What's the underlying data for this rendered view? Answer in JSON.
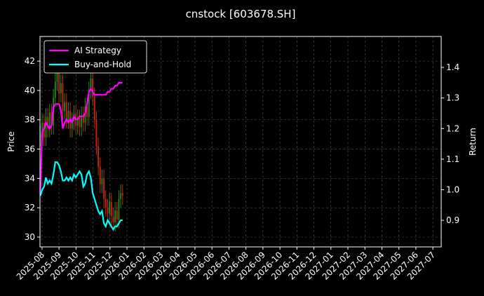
{
  "chart_data": {
    "type": "candlestick",
    "title": "cnstock [603678.SH]",
    "ylabel": "Price",
    "y2label": "Return",
    "x": [
      -0.1,
      0.01,
      0.12,
      0.23,
      0.34,
      0.45,
      0.56,
      0.67,
      0.78,
      0.89,
      1.0,
      1.11,
      1.22,
      1.33,
      1.44,
      1.55,
      1.66,
      1.77,
      1.88,
      1.99,
      2.1,
      2.21,
      2.32,
      2.43,
      2.54,
      2.65,
      2.76,
      2.87,
      2.98,
      3.09,
      3.2,
      3.31,
      3.42,
      3.53,
      3.64,
      3.75,
      3.86,
      3.97,
      4.08,
      4.19,
      4.3,
      4.41,
      4.52,
      4.63,
      4.74
    ],
    "open": [
      36.8,
      37.0,
      37.8,
      36.8,
      38.2,
      37.4,
      38.5,
      37.6,
      39.5,
      40.6,
      41.2,
      39.8,
      40.5,
      38.6,
      39.2,
      38.0,
      38.6,
      37.4,
      37.9,
      38.4,
      37.6,
      38.1,
      37.5,
      38.3,
      37.8,
      38.9,
      38.2,
      40.0,
      40.8,
      39.6,
      38.0,
      36.2,
      34.8,
      33.6,
      34.0,
      32.6,
      32.0,
      31.6,
      32.4,
      31.4,
      31.0,
      31.8,
      31.2,
      32.6,
      33.0
    ],
    "high": [
      37.6,
      38.4,
      38.4,
      38.8,
      38.8,
      39.1,
      39.1,
      40.1,
      41.2,
      41.8,
      41.8,
      41.1,
      41.1,
      39.8,
      39.8,
      39.2,
      39.2,
      38.5,
      39.0,
      39.0,
      38.7,
      38.7,
      38.9,
      38.9,
      39.5,
      39.5,
      40.6,
      41.4,
      41.4,
      40.2,
      38.6,
      36.8,
      35.4,
      34.6,
      34.6,
      33.2,
      32.6,
      33.0,
      33.0,
      32.0,
      32.4,
      32.4,
      33.2,
      33.6,
      33.6
    ],
    "low": [
      36.2,
      36.4,
      36.2,
      36.2,
      36.8,
      36.8,
      37.0,
      37.0,
      38.9,
      40.0,
      39.2,
      39.2,
      38.0,
      38.0,
      37.4,
      37.4,
      36.8,
      36.8,
      37.3,
      37.0,
      37.0,
      36.9,
      36.9,
      37.2,
      37.2,
      37.6,
      37.6,
      39.4,
      39.0,
      37.4,
      35.6,
      34.2,
      33.0,
      33.0,
      32.0,
      31.4,
      31.0,
      31.0,
      30.8,
      30.4,
      30.4,
      30.6,
      30.6,
      32.0,
      32.2
    ],
    "close": [
      37.0,
      37.8,
      36.8,
      38.2,
      37.4,
      38.5,
      37.6,
      39.5,
      40.6,
      41.2,
      39.8,
      40.5,
      38.6,
      39.2,
      38.0,
      38.6,
      37.4,
      37.9,
      38.4,
      37.6,
      38.1,
      37.5,
      38.3,
      37.8,
      38.9,
      38.2,
      40.0,
      40.8,
      39.6,
      38.0,
      36.2,
      34.8,
      33.6,
      34.0,
      32.6,
      32.0,
      31.6,
      32.4,
      31.4,
      31.0,
      31.8,
      31.2,
      32.6,
      33.0,
      32.8
    ],
    "up_color": "#1f8a1f",
    "down_color": "#c8260a",
    "series": [
      {
        "name": "AI Strategy",
        "color": "#ff00ff",
        "axis": "y2",
        "values": [
          0.99,
          1.19,
          1.2,
          1.22,
          1.21,
          1.2,
          1.21,
          1.27,
          1.28,
          1.28,
          1.28,
          1.26,
          1.2,
          1.22,
          1.23,
          1.22,
          1.23,
          1.22,
          1.24,
          1.23,
          1.23,
          1.24,
          1.24,
          1.24,
          1.25,
          1.28,
          1.32,
          1.33,
          1.32,
          1.31,
          1.31,
          1.31,
          1.31,
          1.31,
          1.31,
          1.31,
          1.32,
          1.32,
          1.33,
          1.33,
          1.34,
          1.34,
          1.35,
          1.35,
          1.35
        ]
      },
      {
        "name": "Buy-and-Hold",
        "color": "#00ffff",
        "axis": "y2",
        "values": [
          0.98,
          1.0,
          1.01,
          1.04,
          1.02,
          1.03,
          1.02,
          1.05,
          1.09,
          1.09,
          1.08,
          1.06,
          1.03,
          1.03,
          1.04,
          1.03,
          1.04,
          1.03,
          1.05,
          1.04,
          1.05,
          1.06,
          1.05,
          1.01,
          1.02,
          1.05,
          1.06,
          1.04,
          0.99,
          0.97,
          0.95,
          0.93,
          0.92,
          0.93,
          0.89,
          0.88,
          0.9,
          0.89,
          0.88,
          0.87,
          0.88,
          0.88,
          0.89,
          0.9,
          0.9
        ]
      }
    ],
    "xlim": [
      -0.12,
      23.49
    ],
    "ylim": [
      29.33,
      43.68
    ],
    "y2lim": [
      0.813,
      1.501
    ],
    "xticks": [
      {
        "value": 0,
        "label": "2025-08"
      },
      {
        "value": 1,
        "label": "2025-09"
      },
      {
        "value": 2,
        "label": "2025-10"
      },
      {
        "value": 3,
        "label": "2025-11"
      },
      {
        "value": 4,
        "label": "2025-12"
      },
      {
        "value": 5,
        "label": "2026-01"
      },
      {
        "value": 6,
        "label": "2026-02"
      },
      {
        "value": 7,
        "label": "2026-03"
      },
      {
        "value": 8,
        "label": "2026-04"
      },
      {
        "value": 9,
        "label": "2026-05"
      },
      {
        "value": 10,
        "label": "2026-06"
      },
      {
        "value": 11,
        "label": "2026-07"
      },
      {
        "value": 12,
        "label": "2026-08"
      },
      {
        "value": 13,
        "label": "2026-09"
      },
      {
        "value": 14,
        "label": "2026-10"
      },
      {
        "value": 15,
        "label": "2026-11"
      },
      {
        "value": 16,
        "label": "2026-12"
      },
      {
        "value": 17,
        "label": "2027-01"
      },
      {
        "value": 18,
        "label": "2027-02"
      },
      {
        "value": 19,
        "label": "2027-03"
      },
      {
        "value": 20,
        "label": "2027-04"
      },
      {
        "value": 21,
        "label": "2027-05"
      },
      {
        "value": 22,
        "label": "2027-06"
      },
      {
        "value": 23,
        "label": "2027-07"
      }
    ],
    "yticks": [
      30,
      32,
      34,
      36,
      38,
      40,
      42
    ],
    "y2ticks": [
      0.9,
      {
        "value": 1,
        "label": "1.0"
      },
      1.1,
      1.2,
      1.3,
      1.4
    ],
    "grid": true,
    "legend": "upper left"
  }
}
